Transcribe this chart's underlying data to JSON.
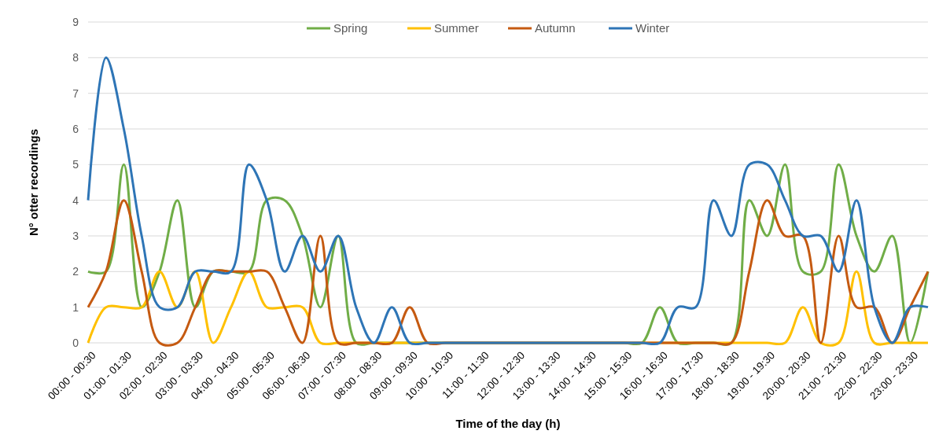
{
  "chart_data": {
    "type": "line",
    "xlabel": "Time of the day (h)",
    "ylabel": "N° otter recordings",
    "categories": [
      "00:00 - 00:30",
      null,
      "01:00 - 01:30",
      null,
      "02:00 - 02:30",
      null,
      "03:00 - 03:30",
      null,
      "04:00 - 04:30",
      null,
      "05:00 - 05:30",
      null,
      "06:00 - 06:30",
      null,
      "07:00 - 07:30",
      null,
      "08:00 - 08:30",
      null,
      "09:00 - 09:30",
      null,
      "10:00 - 10:30",
      null,
      "11:00 - 11:30",
      null,
      "12:00 - 12:30",
      null,
      "13:00 - 13:30",
      null,
      "14:00 - 14:30",
      null,
      "15:00 - 15:30",
      null,
      "16:00 - 16:30",
      null,
      "17:00 - 17:30",
      null,
      "18:00 - 18:30",
      null,
      "19:00 - 19:30",
      null,
      "20:00 - 20:30",
      null,
      "21:00 - 21:30",
      null,
      "22:00 - 22:30",
      null,
      "23:00 - 23:30",
      null
    ],
    "series": [
      {
        "name": "Spring",
        "color": "#70ad47",
        "values": [
          2,
          2,
          5,
          1,
          2,
          4,
          1,
          2,
          2,
          2,
          4,
          4,
          3,
          1,
          3,
          0,
          0,
          0,
          0,
          0,
          0,
          0,
          0,
          0,
          0,
          0,
          0,
          0,
          0,
          0,
          0,
          0,
          1,
          0,
          0,
          0,
          0,
          4,
          3,
          5,
          2,
          2,
          5,
          3,
          2,
          3,
          0,
          2
        ]
      },
      {
        "name": "Summer",
        "color": "#ffc000",
        "values": [
          0,
          1,
          1,
          1,
          2,
          1,
          2,
          0,
          1,
          2,
          1,
          1,
          1,
          0,
          0,
          0,
          0,
          0,
          0,
          0,
          0,
          0,
          0,
          0,
          0,
          0,
          0,
          0,
          0,
          0,
          0,
          0,
          0,
          0,
          0,
          0,
          0,
          0,
          0,
          0,
          1,
          0,
          0,
          2,
          0,
          0,
          0,
          0
        ]
      },
      {
        "name": "Autumn",
        "color": "#c55a11",
        "values": [
          1,
          2,
          4,
          2,
          0,
          0,
          1,
          2,
          2,
          2,
          2,
          1,
          0,
          3,
          0,
          0,
          0,
          0,
          1,
          0,
          0,
          0,
          0,
          0,
          0,
          0,
          0,
          0,
          0,
          0,
          0,
          0,
          0,
          0,
          0,
          0,
          0,
          2,
          4,
          3,
          3,
          0,
          3,
          1,
          1,
          0,
          1,
          2
        ]
      },
      {
        "name": "Winter",
        "color": "#2e75b6",
        "values": [
          4,
          8,
          6,
          3,
          1,
          1,
          2,
          2,
          2,
          5,
          4,
          2,
          3,
          2,
          3,
          1,
          0,
          1,
          0,
          0,
          0,
          0,
          0,
          0,
          0,
          0,
          0,
          0,
          0,
          0,
          0,
          0,
          0,
          1,
          1,
          4,
          3,
          5,
          5,
          4,
          3,
          3,
          2,
          4,
          1,
          0,
          1,
          1
        ]
      }
    ],
    "ylim": [
      0,
      9
    ],
    "yticks": [
      0,
      1,
      2,
      3,
      4,
      5,
      6,
      7,
      8,
      9
    ],
    "grid": "y",
    "legend": "top",
    "line_style": "solid",
    "marker": "none"
  }
}
